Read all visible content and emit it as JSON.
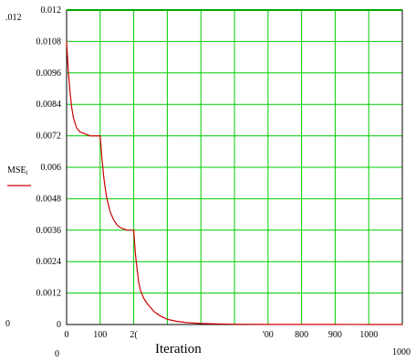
{
  "chart_data": {
    "type": "line",
    "xlabel": "Iteration",
    "ylabel": "MSE",
    "ylabel_sub": "i",
    "xlim": [
      0,
      1000
    ],
    "ylim": [
      0,
      0.012
    ],
    "x_ticks": [
      "0",
      "100",
      "2(",
      "",
      "",
      "",
      "'00",
      "800",
      "900",
      "1000"
    ],
    "y_ticks": [
      "0",
      "0.0012",
      "0.0024",
      "0.0036",
      "0.0048",
      "0.006",
      "0.0072",
      "0.0084",
      "0.0096",
      "0.0108",
      "0.012"
    ],
    "axis_extra_labels": {
      "y_min": "0",
      "y_max": ".012",
      "x_min": "0",
      "x_max": "1000"
    },
    "grid": true,
    "grid_color": "#00cc00",
    "series": [
      {
        "color": "#cc0000",
        "x": [
          0,
          5,
          10,
          15,
          20,
          30,
          40,
          50,
          60,
          70,
          80,
          90,
          100,
          105,
          110,
          115,
          120,
          130,
          140,
          150,
          160,
          170,
          180,
          190,
          200,
          205,
          210,
          215,
          220,
          230,
          240,
          260,
          280,
          300,
          330,
          360,
          400,
          450,
          500,
          600,
          700,
          800,
          900,
          1000
        ],
        "y": [
          0.0108,
          0.0097,
          0.0089,
          0.0083,
          0.0079,
          0.0075,
          0.00735,
          0.0073,
          0.00725,
          0.0072,
          0.0072,
          0.0072,
          0.0072,
          0.0064,
          0.0057,
          0.0052,
          0.0048,
          0.0043,
          0.004,
          0.0038,
          0.0037,
          0.00365,
          0.0036,
          0.0036,
          0.0036,
          0.0027,
          0.0021,
          0.0016,
          0.0013,
          0.001,
          0.0008,
          0.0005,
          0.00032,
          0.0002,
          0.00012,
          7e-05,
          4e-05,
          2e-05,
          1e-05,
          5e-06,
          3e-06,
          2e-06,
          1e-06,
          1e-06
        ]
      }
    ]
  }
}
